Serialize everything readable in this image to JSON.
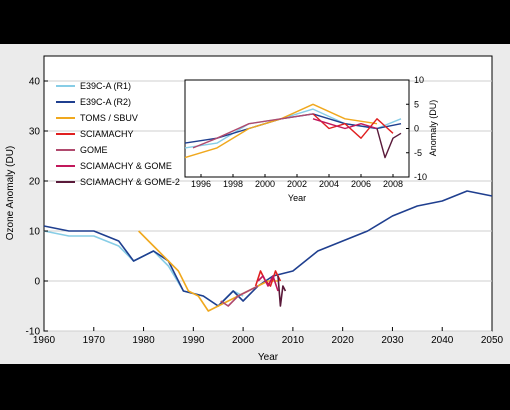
{
  "chart_data": [
    {
      "type": "line",
      "xlabel": "Year",
      "ylabel": "Ozone Anomaly (DU)",
      "xlim": [
        1960,
        2050
      ],
      "ylim": [
        -10,
        45
      ],
      "xticks": [
        1960,
        1970,
        1980,
        1990,
        2000,
        2010,
        2020,
        2030,
        2040,
        2050
      ],
      "yticks": [
        -10,
        0,
        10,
        20,
        30,
        40
      ],
      "grid": "horizontal",
      "legend": {
        "placement": "top-left"
      },
      "series": [
        {
          "name": "E39C-A (R1)",
          "color": "#87cde6",
          "x": [
            1960,
            1965,
            1970,
            1975,
            1978,
            1982,
            1985,
            1988,
            1992,
            1995,
            1998,
            2000
          ],
          "y": [
            10,
            9,
            9,
            7,
            4,
            6,
            3,
            -2,
            -3,
            -5,
            -2,
            -3
          ]
        },
        {
          "name": "E39C-A (R2)",
          "color": "#1f3f8f",
          "x": [
            1960,
            1965,
            1970,
            1975,
            1978,
            1982,
            1985,
            1988,
            1992,
            1995,
            1998,
            2000,
            2003,
            2006,
            2010,
            2015,
            2020,
            2025,
            2030,
            2035,
            2040,
            2045,
            2050
          ],
          "y": [
            11,
            10,
            10,
            8,
            4,
            6,
            4,
            -2,
            -3,
            -5,
            -2,
            -4,
            -1,
            1,
            2,
            6,
            8,
            10,
            13,
            15,
            16,
            18,
            17
          ]
        },
        {
          "name": "TOMS / SBUV",
          "color": "#f0a81e",
          "x": [
            1979,
            1981,
            1983,
            1985,
            1987,
            1989,
            1991,
            1993,
            1995,
            1997,
            1999,
            2001,
            2003,
            2005,
            2007
          ],
          "y": [
            10,
            8,
            6,
            4,
            2,
            -2,
            -3,
            -6,
            -5,
            -4,
            -3,
            -2,
            -1,
            0,
            0
          ]
        },
        {
          "name": "SCIAMACHY",
          "color": "#e02020",
          "x": [
            2002.5,
            2003.5,
            2004.5,
            2005.5,
            2006.5,
            2007.5
          ],
          "y": [
            -1,
            2,
            0,
            -1,
            2,
            0
          ]
        },
        {
          "name": "GOME",
          "color": "#b04a6e",
          "x": [
            1995.5,
            1997,
            1999,
            2001,
            2003
          ],
          "y": [
            -4,
            -5,
            -3,
            -2,
            -1
          ]
        },
        {
          "name": "SCIAMACHY & GOME",
          "color": "#c2185b",
          "x": [
            2003,
            2004,
            2005,
            2006,
            2007
          ],
          "y": [
            0,
            1,
            -1,
            1,
            -2
          ]
        },
        {
          "name": "SCIAMACHY & GOME-2",
          "color": "#5a1a3a",
          "x": [
            2007,
            2007.5,
            2008,
            2008.5
          ],
          "y": [
            1,
            -5,
            -1,
            -2
          ]
        }
      ]
    },
    {
      "type": "line",
      "xlabel": "Year",
      "ylabel": "Anomaly (DU)",
      "xlim": [
        1995,
        2009
      ],
      "ylim": [
        -10,
        10
      ],
      "xticks": [
        1996,
        1998,
        2000,
        2002,
        2004,
        2006,
        2008
      ],
      "yticks": [
        -10,
        -5,
        0,
        5,
        10
      ],
      "series": [
        {
          "name": "E39C-A (R1)",
          "x": [
            1995,
            1997,
            1999,
            2001,
            2003,
            2005,
            2007,
            2008.5
          ],
          "y": [
            -4,
            -3,
            1,
            2,
            4,
            1,
            0,
            2
          ]
        },
        {
          "name": "E39C-A (R2)",
          "x": [
            1995,
            1997,
            1999,
            2001,
            2003,
            2005,
            2007,
            2008.5
          ],
          "y": [
            -3,
            -2,
            0,
            2,
            3,
            1,
            0,
            1
          ]
        },
        {
          "name": "TOMS / SBUV",
          "x": [
            1995,
            1997,
            1999,
            2001,
            2003,
            2005,
            2007
          ],
          "y": [
            -6,
            -4,
            0,
            2,
            5,
            2,
            1
          ]
        },
        {
          "name": "SCIAMACHY",
          "x": [
            2003,
            2004,
            2005,
            2006,
            2007,
            2008
          ],
          "y": [
            3,
            0,
            1,
            -2,
            2,
            -1
          ]
        },
        {
          "name": "GOME",
          "x": [
            1995.5,
            1997,
            1999,
            2001,
            2003
          ],
          "y": [
            -4,
            -2,
            1,
            2,
            3
          ]
        },
        {
          "name": "SCIAMACHY & GOME",
          "x": [
            2003,
            2004,
            2005,
            2006,
            2007
          ],
          "y": [
            2,
            1,
            0,
            1,
            0
          ]
        },
        {
          "name": "SCIAMACHY & GOME-2",
          "x": [
            2007,
            2007.5,
            2008,
            2008.5
          ],
          "y": [
            0,
            -6,
            -2,
            -1
          ]
        }
      ]
    }
  ]
}
